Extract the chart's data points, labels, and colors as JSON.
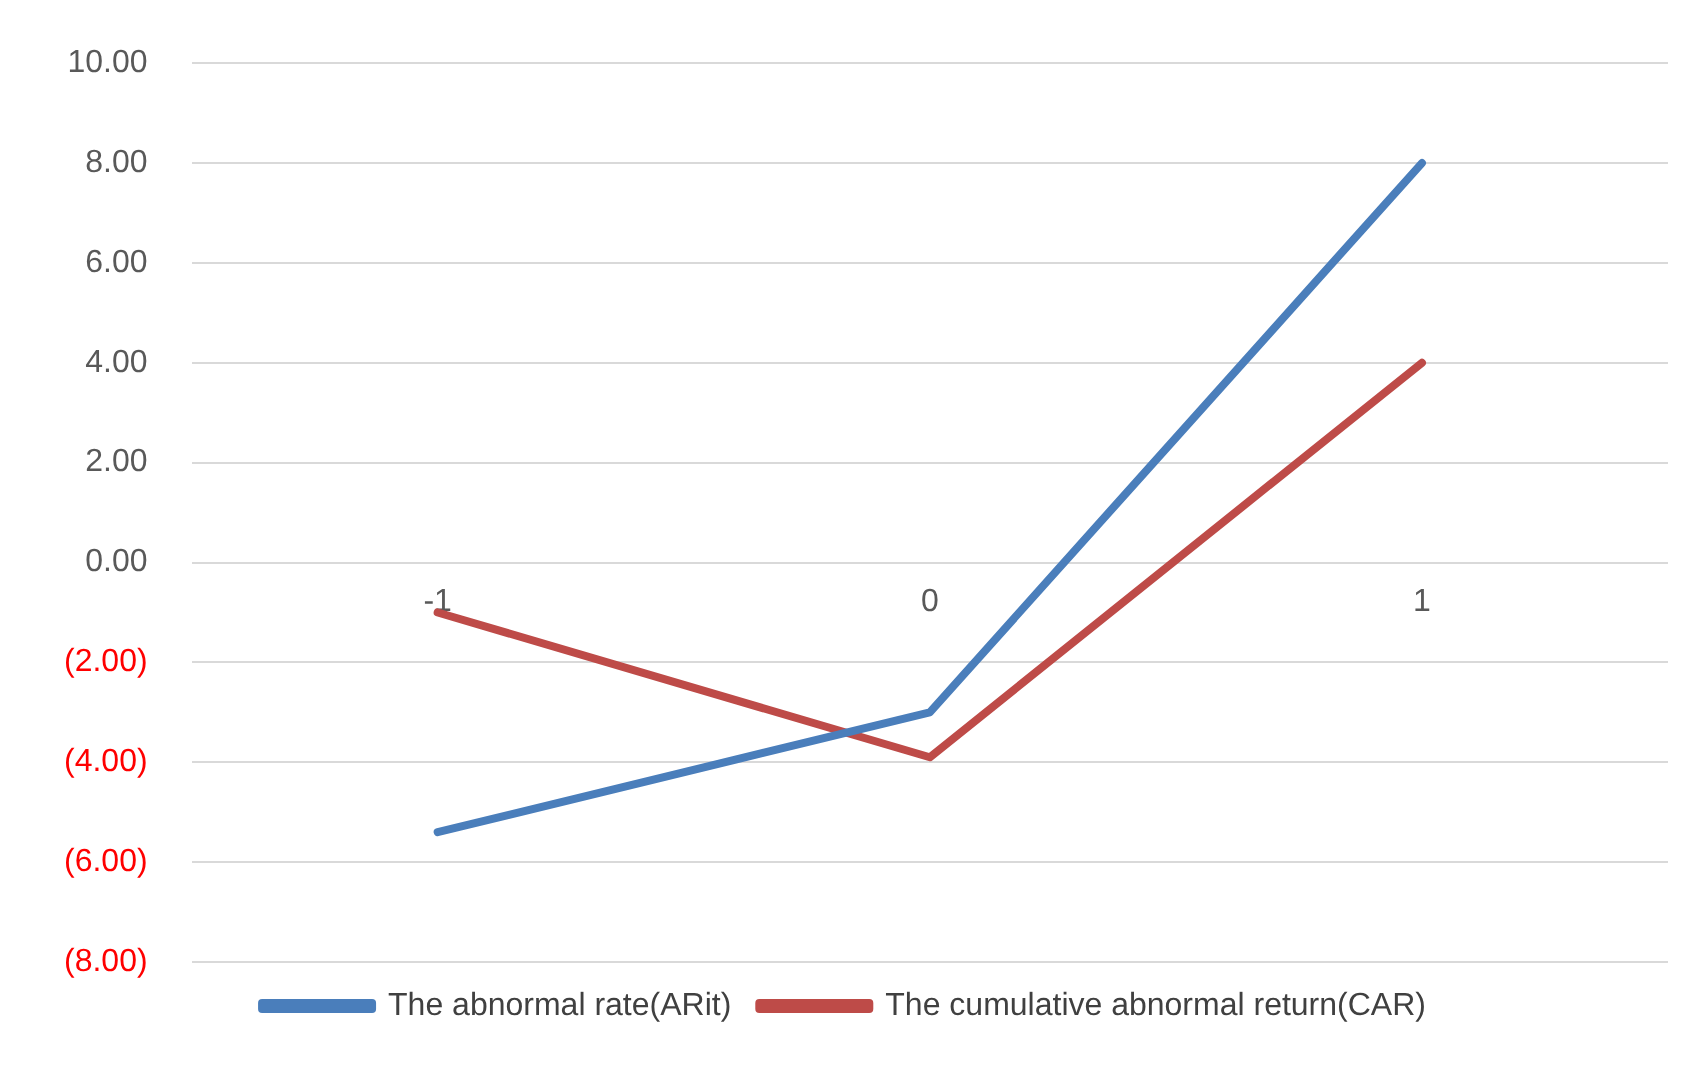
{
  "chart_data": {
    "type": "line",
    "categories": [
      "-1",
      "0",
      "1"
    ],
    "series": [
      {
        "name": "The abnormal rate(ARit)",
        "color": "#4a7ebb",
        "values": [
          -5.4,
          -3.0,
          8.0
        ]
      },
      {
        "name": "The cumulative abnormal return(CAR)",
        "color": "#be4b48",
        "values": [
          -1.0,
          -3.9,
          4.0
        ]
      }
    ],
    "ylim": [
      -8,
      10
    ],
    "yticks": [
      {
        "value": -8,
        "label": "(8.00)"
      },
      {
        "value": -6,
        "label": "(6.00)"
      },
      {
        "value": -4,
        "label": "(4.00)"
      },
      {
        "value": -2,
        "label": "(2.00)"
      },
      {
        "value": 0,
        "label": "0.00"
      },
      {
        "value": 2,
        "label": "2.00"
      },
      {
        "value": 4,
        "label": "4.00"
      },
      {
        "value": 6,
        "label": "6.00"
      },
      {
        "value": 8,
        "label": "8.00"
      },
      {
        "value": 10,
        "label": "10.00"
      }
    ],
    "grid": "y",
    "legend": "bottom",
    "marker": "none",
    "line_style": "solid"
  }
}
